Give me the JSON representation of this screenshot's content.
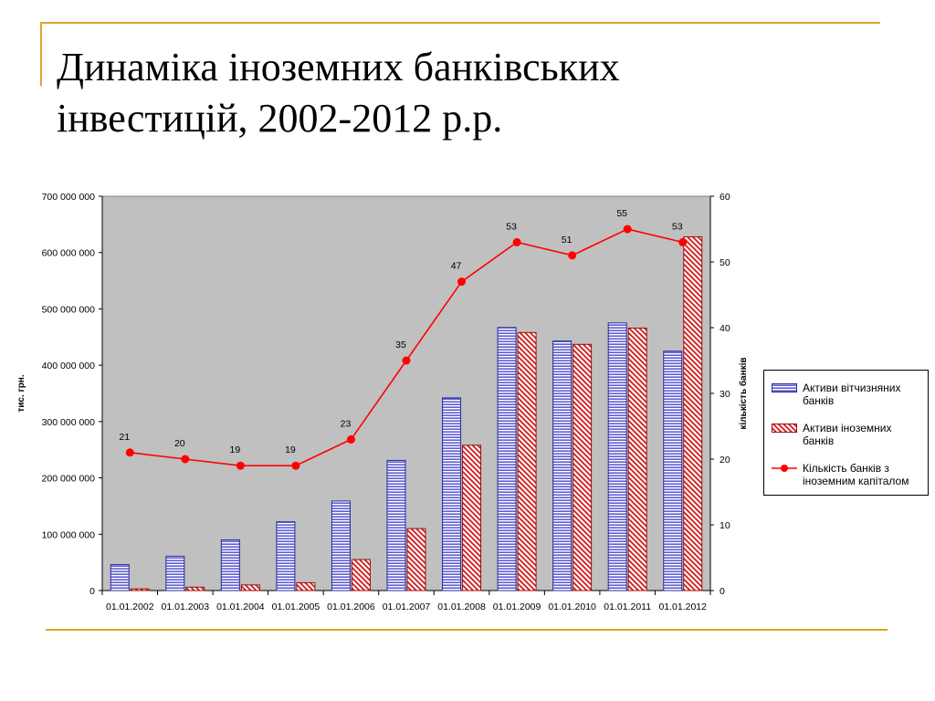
{
  "title": {
    "line1": "Динаміка іноземних банківських",
    "line2": "інвестицій, 2002-2012 р.р."
  },
  "chart_data": {
    "type": "bar",
    "categories": [
      "01.01.2002",
      "01.01.2003",
      "01.01.2004",
      "01.01.2005",
      "01.01.2006",
      "01.01.2007",
      "01.01.2008",
      "01.01.2009",
      "01.01.2010",
      "01.01.2011",
      "01.01.2012"
    ],
    "ylabel": "тис. грн.",
    "y2label": "кількість банків",
    "ylim": [
      0,
      700000000
    ],
    "y2lim": [
      0,
      60
    ],
    "yticks": [
      "0",
      "100 000 000",
      "200 000 000",
      "300 000 000",
      "400 000 000",
      "500 000 000",
      "600 000 000",
      "700 000 000"
    ],
    "yticks_values": [
      0,
      100000000,
      200000000,
      300000000,
      400000000,
      500000000,
      600000000,
      700000000
    ],
    "y2ticks": [
      "0",
      "10",
      "20",
      "30",
      "40",
      "50",
      "60"
    ],
    "y2ticks_values": [
      0,
      10,
      20,
      30,
      40,
      50,
      60
    ],
    "plot_background": "#c0c0c0",
    "legend_position": "right",
    "series": [
      {
        "name": "Активи вітчизняних банків",
        "kind": "bar",
        "axis": "left",
        "pattern": "horizontal-lines",
        "color": "#3333cc",
        "values": [
          46000000,
          61000000,
          90000000,
          122000000,
          159000000,
          231000000,
          342000000,
          467000000,
          443000000,
          475000000,
          425000000
        ]
      },
      {
        "name": "Активи іноземних банків",
        "kind": "bar",
        "axis": "left",
        "pattern": "diagonal-hatch",
        "color": "#cc1111",
        "values": [
          3000000,
          6000000,
          10000000,
          14000000,
          55000000,
          110000000,
          258000000,
          458000000,
          437000000,
          466000000,
          628000000
        ]
      },
      {
        "name": "Кількість банків з іноземним капіталом",
        "kind": "line",
        "axis": "right",
        "color": "#ff0000",
        "values": [
          21,
          20,
          19,
          19,
          23,
          35,
          47,
          53,
          51,
          55,
          53
        ]
      }
    ]
  }
}
